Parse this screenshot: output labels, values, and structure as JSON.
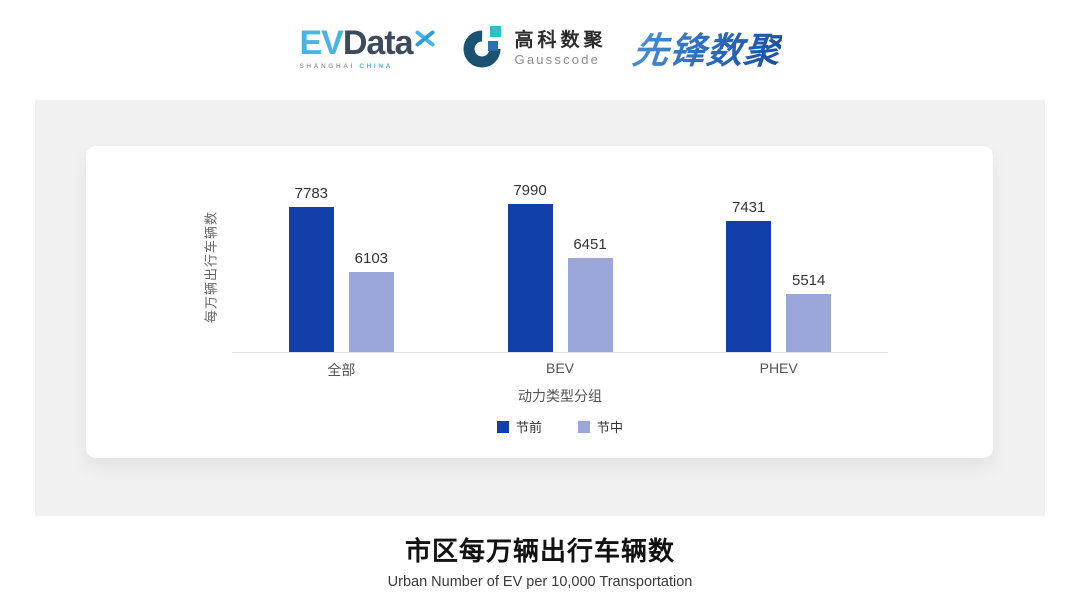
{
  "header": {
    "evdata": {
      "ev": "EV",
      "data": "Data",
      "sub_left": "SHANGHAI",
      "sub_right": "CHINA"
    },
    "gausscode": {
      "cn": "高科数聚",
      "en": "Gausscode"
    },
    "xianfeng": {
      "text": "先锋数聚"
    }
  },
  "chart_data": {
    "type": "bar",
    "categories": [
      "全部",
      "BEV",
      "PHEV"
    ],
    "series": [
      {
        "name": "节前",
        "color": "#1240a8",
        "values": [
          7783,
          7990,
          7431
        ]
      },
      {
        "name": "节中",
        "color": "#9ba7d9",
        "values": [
          6103,
          6451,
          5514
        ]
      }
    ],
    "xlabel": "动力类型分组",
    "ylabel": "每万辆出行车辆数",
    "ylim": [
      4000,
      8450
    ],
    "grid": false,
    "legend_position": "bottom",
    "value_labels": true
  },
  "footer": {
    "title": "市区每万辆出行车辆数",
    "subtitle": "Urban Number of EV per 10,000 Transportation"
  },
  "colors": {
    "panel_bg": "#f1f1f1",
    "card_bg": "#ffffff",
    "axis_line": "#e2e2e2",
    "evdata_cyan": "#49b4e4",
    "evdata_slate": "#3d4a5c",
    "gausscode_ring": "#1b5173",
    "gausscode_teal": "#2fbfc4",
    "gausscode_blue": "#2f6fb0",
    "xianfeng_blue": "#2e6cb5"
  },
  "icons": {
    "evdata_x_mark": "crossed-blades",
    "gausscode_mark": "g-ring"
  }
}
